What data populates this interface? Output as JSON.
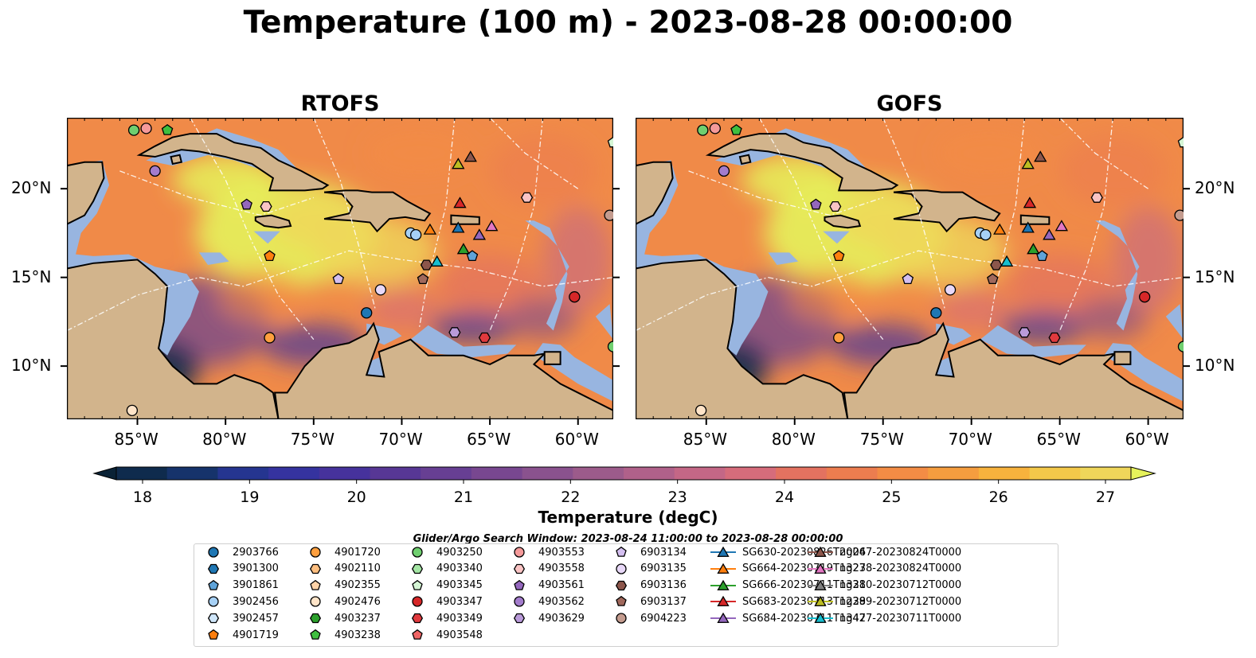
{
  "title": "Temperature (100 m) - 2023-08-28 00:00:00",
  "maps": [
    {
      "title": "RTOFS"
    },
    {
      "title": "GOFS"
    }
  ],
  "lon_ticks": [
    "85°W",
    "80°W",
    "75°W",
    "70°W",
    "65°W",
    "60°W"
  ],
  "lon_values": [
    -85,
    -80,
    -75,
    -70,
    -65,
    -60
  ],
  "lat_ticks": [
    "20°N",
    "15°N",
    "10°N"
  ],
  "lat_values": [
    20,
    15,
    10
  ],
  "extent": {
    "lon": [
      -89,
      -58
    ],
    "lat": [
      7,
      24
    ]
  },
  "colorbar": {
    "label": "Temperature (degC)",
    "ticks": [
      "18",
      "19",
      "20",
      "21",
      "22",
      "23",
      "24",
      "25",
      "26",
      "27"
    ],
    "range": [
      18,
      27
    ],
    "extend": "both",
    "colors": [
      "#0a2236",
      "#0f2b4d",
      "#16336b",
      "#253590",
      "#35339f",
      "#46329c",
      "#573795",
      "#673f93",
      "#784790",
      "#8a528e",
      "#9c5b8b",
      "#b0618a",
      "#c46786",
      "#d66c7b",
      "#e37260",
      "#ec7d4f",
      "#f38c45",
      "#f59d3f",
      "#f7b23d",
      "#f3c84a",
      "#efd65a",
      "#e6f25b"
    ],
    "colormap": "thermal"
  },
  "search_window": "Glider/Argo Search Window: 2023-08-24 11:00:00 to 2023-08-28 00:00:00",
  "colors": {
    "land": "#d2b48c",
    "shelf": "#98b5e0",
    "deep_land_water": "#0a2236"
  },
  "legend": [
    {
      "label": "2903766",
      "marker": "circle",
      "color": "#1f77b4"
    },
    {
      "label": "3901300",
      "marker": "hexagon",
      "color": "#1f77b4"
    },
    {
      "label": "3901861",
      "marker": "pentagon",
      "color": "#5fa3d9"
    },
    {
      "label": "3902456",
      "marker": "circle",
      "color": "#a6d0f5"
    },
    {
      "label": "3902457",
      "marker": "hexagon",
      "color": "#cfe6fa"
    },
    {
      "label": "4901719",
      "marker": "pentagon",
      "color": "#ff7f0e"
    },
    {
      "label": "4901720",
      "marker": "circle",
      "color": "#ff9f3e"
    },
    {
      "label": "4902110",
      "marker": "hexagon",
      "color": "#ffbf80"
    },
    {
      "label": "4902355",
      "marker": "pentagon",
      "color": "#ffd3a8"
    },
    {
      "label": "4902476",
      "marker": "circle",
      "color": "#ffe4c8"
    },
    {
      "label": "4903237",
      "marker": "hexagon",
      "color": "#2ca02c"
    },
    {
      "label": "4903238",
      "marker": "pentagon",
      "color": "#3fbf3f"
    },
    {
      "label": "4903250",
      "marker": "circle",
      "color": "#6fcf6f"
    },
    {
      "label": "4903340",
      "marker": "hexagon",
      "color": "#a4e6a4"
    },
    {
      "label": "4903345",
      "marker": "pentagon",
      "color": "#d4f5d4"
    },
    {
      "label": "4903347",
      "marker": "circle",
      "color": "#d62728"
    },
    {
      "label": "4903349",
      "marker": "hexagon",
      "color": "#e03a3e"
    },
    {
      "label": "4903548",
      "marker": "pentagon",
      "color": "#f06565"
    },
    {
      "label": "4903553",
      "marker": "circle",
      "color": "#f59a9a"
    },
    {
      "label": "4903558",
      "marker": "hexagon",
      "color": "#fac4c4"
    },
    {
      "label": "4903561",
      "marker": "pentagon",
      "color": "#9467bd"
    },
    {
      "label": "4903562",
      "marker": "circle",
      "color": "#a37ccc"
    },
    {
      "label": "4903629",
      "marker": "hexagon",
      "color": "#b99ad9"
    },
    {
      "label": "6903134",
      "marker": "pentagon",
      "color": "#d4bff0"
    },
    {
      "label": "6903135",
      "marker": "circle",
      "color": "#e8d8f8"
    },
    {
      "label": "6903136",
      "marker": "hexagon",
      "color": "#8c564b"
    },
    {
      "label": "6903137",
      "marker": "pentagon",
      "color": "#a0685c"
    },
    {
      "label": "6904223",
      "marker": "circle",
      "color": "#c49c8f"
    },
    {
      "label": "SG630-20230826T2004",
      "marker": "triangle",
      "color": "#1f77b4"
    },
    {
      "label": "SG664-20230719T1323",
      "marker": "triangle",
      "color": "#ff7f0e"
    },
    {
      "label": "SG666-20230711T1331",
      "marker": "triangle",
      "color": "#2ca02c"
    },
    {
      "label": "SG683-20230713T1239",
      "marker": "triangle",
      "color": "#d62728"
    },
    {
      "label": "SG684-20230711T1347",
      "marker": "triangle",
      "color": "#9467bd"
    },
    {
      "label": "ng267-20230824T0000",
      "marker": "triangle",
      "color": "#8c564b"
    },
    {
      "label": "ng278-20230824T0000",
      "marker": "triangle",
      "color": "#e377c2"
    },
    {
      "label": "ng280-20230712T0000",
      "marker": "triangle",
      "color": "#7f7f7f"
    },
    {
      "label": "ng289-20230712T0000",
      "marker": "triangle",
      "color": "#bcbd22"
    },
    {
      "label": "ng427-20230711T0000",
      "marker": "triangle",
      "color": "#17becf"
    }
  ],
  "markers": [
    {
      "id": "2903766",
      "lon": -72.0,
      "lat": 13.0
    },
    {
      "id": "3901861",
      "lon": -66.0,
      "lat": 16.2
    },
    {
      "id": "3902456",
      "lon": -69.5,
      "lat": 17.5
    },
    {
      "id": "3902456b",
      "lon": -69.2,
      "lat": 17.4
    },
    {
      "id": "4901719",
      "lon": -77.5,
      "lat": 16.2
    },
    {
      "id": "4901720",
      "lon": -77.5,
      "lat": 11.6
    },
    {
      "id": "4902476",
      "lon": -85.3,
      "lat": 7.5
    },
    {
      "id": "4903238",
      "lon": -83.3,
      "lat": 23.3
    },
    {
      "id": "4903250",
      "lon": -85.2,
      "lat": 23.3
    },
    {
      "id": "4903250b",
      "lon": -58.0,
      "lat": 11.1
    },
    {
      "id": "4903345",
      "lon": -58.0,
      "lat": 22.6
    },
    {
      "id": "4903347",
      "lon": -60.2,
      "lat": 13.9
    },
    {
      "id": "4903349",
      "lon": -65.3,
      "lat": 11.6
    },
    {
      "id": "4903553",
      "lon": -84.5,
      "lat": 23.4
    },
    {
      "id": "4903558",
      "lon": -77.7,
      "lat": 19.0
    },
    {
      "id": "4903558b",
      "lon": -62.9,
      "lat": 19.5
    },
    {
      "id": "4903561",
      "lon": -78.8,
      "lat": 19.1
    },
    {
      "id": "4903562",
      "lon": -84.0,
      "lat": 21.0
    },
    {
      "id": "4903629",
      "lon": -67.0,
      "lat": 11.9
    },
    {
      "id": "6903134",
      "lon": -73.6,
      "lat": 14.9
    },
    {
      "id": "6903135",
      "lon": -71.2,
      "lat": 14.3
    },
    {
      "id": "6903136",
      "lon": -68.6,
      "lat": 15.7
    },
    {
      "id": "6903137",
      "lon": -68.8,
      "lat": 14.9
    },
    {
      "id": "6904223",
      "lon": -58.2,
      "lat": 18.5
    },
    {
      "id": "SG630-20230826T2004",
      "lon": -66.8,
      "lat": 17.8
    },
    {
      "id": "SG664-20230719T1323",
      "lon": -68.4,
      "lat": 17.7
    },
    {
      "id": "SG666-20230711T1331",
      "lon": -66.5,
      "lat": 16.6
    },
    {
      "id": "SG683-20230713T1239",
      "lon": -66.7,
      "lat": 19.2
    },
    {
      "id": "SG684-20230711T1347",
      "lon": -65.6,
      "lat": 17.4
    },
    {
      "id": "ng267-20230824T0000",
      "lon": -66.1,
      "lat": 21.8
    },
    {
      "id": "ng278-20230824T0000",
      "lon": -64.9,
      "lat": 17.9
    },
    {
      "id": "ng289-20230712T0000",
      "lon": -66.8,
      "lat": 21.4
    },
    {
      "id": "ng427-20230711T0000",
      "lon": -68.0,
      "lat": 15.9
    }
  ]
}
